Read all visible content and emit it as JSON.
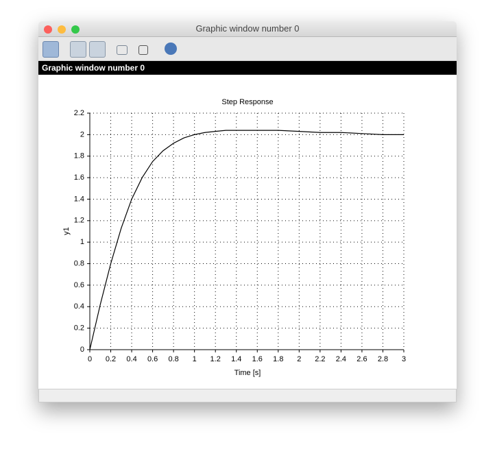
{
  "window": {
    "title": "Graphic window number 0",
    "header": "Graphic window number 0"
  },
  "chart_data": {
    "type": "line",
    "title": "Step Response",
    "x_label": "Time [s]",
    "y_label": "y1",
    "x": [
      0,
      0.1,
      0.2,
      0.3,
      0.4,
      0.5,
      0.6,
      0.7,
      0.8,
      0.9,
      1.0,
      1.1,
      1.2,
      1.3,
      1.4,
      1.6,
      1.8,
      2.0,
      2.2,
      2.4,
      2.6,
      2.8,
      3.0
    ],
    "values": [
      0,
      0.42,
      0.8,
      1.13,
      1.4,
      1.6,
      1.75,
      1.85,
      1.92,
      1.97,
      2.0,
      2.02,
      2.03,
      2.04,
      2.04,
      2.04,
      2.04,
      2.03,
      2.02,
      2.02,
      2.01,
      2.0,
      2.0
    ],
    "color": "#000000",
    "xlim": [
      0,
      3
    ],
    "xticks": [
      0,
      0.2,
      0.4,
      0.6,
      0.8,
      1,
      1.2,
      1.4,
      1.6,
      1.8,
      2,
      2.2,
      2.4,
      2.6,
      2.8,
      3
    ],
    "ylim": [
      0,
      2.2
    ],
    "yticks": [
      0,
      0.2,
      0.4,
      0.6,
      0.8,
      1,
      1.2,
      1.4,
      1.6,
      1.8,
      2,
      2.2
    ],
    "grid": true
  }
}
